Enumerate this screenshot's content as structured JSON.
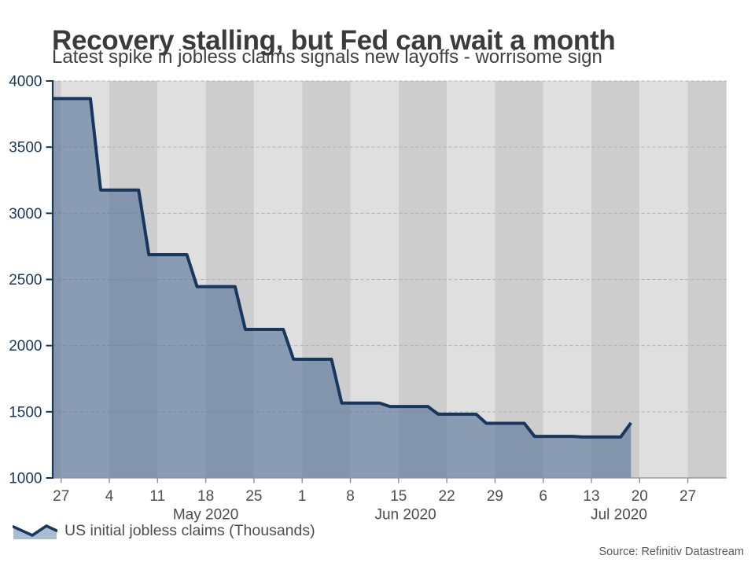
{
  "header": {
    "title": "Recovery stalling, but Fed can wait a month",
    "subtitle": "Latest spike in jobless claims signals new layoffs - worrisome sign"
  },
  "legend": {
    "label": "US initial jobless claims (Thousands)",
    "icon": "area-series-icon"
  },
  "footer": {
    "source": "Source: Refinitiv Datastream"
  },
  "chart_data": {
    "type": "area",
    "step": true,
    "title": "Recovery stalling, but Fed can wait a month",
    "subtitle": "Latest spike in jobless claims signals new layoffs - worrisome sign",
    "unit": "Thousands",
    "series": [
      {
        "name": "US initial jobless claims (Thousands)",
        "points": [
          {
            "date": "2020-04-25",
            "value": 3867
          },
          {
            "date": "2020-05-02",
            "value": 3176
          },
          {
            "date": "2020-05-09",
            "value": 2687
          },
          {
            "date": "2020-05-16",
            "value": 2446
          },
          {
            "date": "2020-05-23",
            "value": 2123
          },
          {
            "date": "2020-05-30",
            "value": 1897
          },
          {
            "date": "2020-06-06",
            "value": 1566
          },
          {
            "date": "2020-06-13",
            "value": 1540
          },
          {
            "date": "2020-06-20",
            "value": 1482
          },
          {
            "date": "2020-06-27",
            "value": 1413
          },
          {
            "date": "2020-07-04",
            "value": 1314
          },
          {
            "date": "2020-07-11",
            "value": 1310
          },
          {
            "date": "2020-07-18",
            "value": 1416
          }
        ]
      }
    ],
    "y_axis": {
      "min": 1000,
      "max": 4000,
      "tick_step": 500,
      "ticks": [
        4000,
        3500,
        3000,
        2500,
        2000,
        1500,
        1000
      ]
    },
    "x_axis": {
      "tick_dates": [
        "2020-04-27",
        "2020-05-04",
        "2020-05-11",
        "2020-05-18",
        "2020-05-25",
        "2020-06-01",
        "2020-06-08",
        "2020-06-15",
        "2020-06-22",
        "2020-06-29",
        "2020-07-06",
        "2020-07-13",
        "2020-07-20",
        "2020-07-27"
      ],
      "tick_labels": [
        "27",
        "4",
        "11",
        "18",
        "25",
        "1",
        "8",
        "15",
        "22",
        "29",
        "6",
        "13",
        "20",
        "27"
      ],
      "month_labels": [
        {
          "text": "May 2020",
          "anchor_date": "2020-05-18"
        },
        {
          "text": "Jun 2020",
          "anchor_date": "2020-06-16"
        },
        {
          "text": "Jul 2020",
          "anchor_date": "2020-07-17"
        }
      ]
    },
    "grid": "horizontal-dashed",
    "legend_position": "bottom-left",
    "colors": {
      "line": "#17375e",
      "fill": "rgba(81,111,151,0.6)",
      "stripe_light": "#dfdfdf",
      "stripe_dark": "#cdcdcd",
      "gridline": "#b0b0b0",
      "y_label": "#17375e",
      "x_label": "#4d4d4d",
      "x_axis_line": "#8f8f8f",
      "legend_fill": "#a9bdd1"
    }
  }
}
